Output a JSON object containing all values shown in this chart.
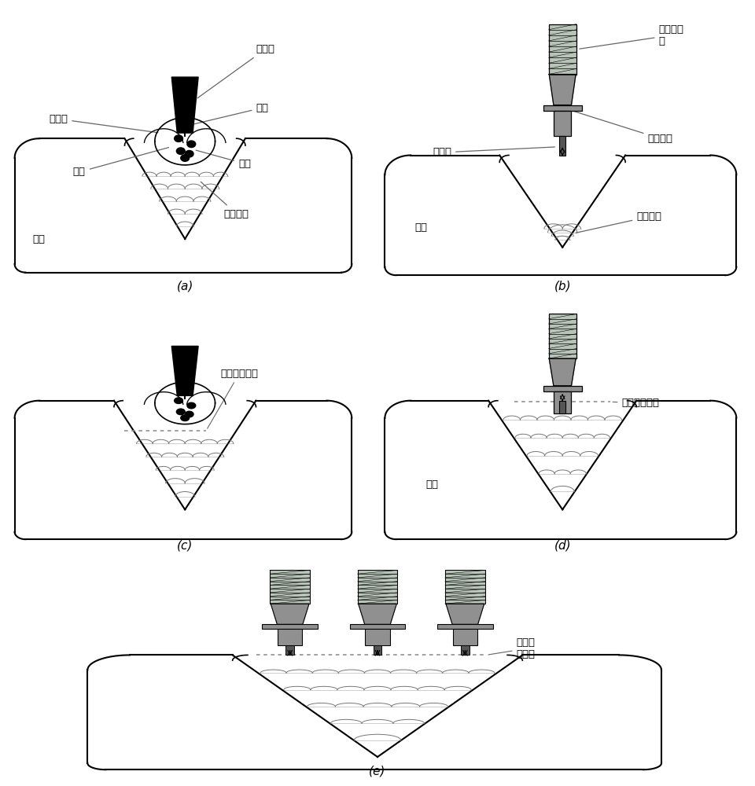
{
  "bg_color": "#ffffff",
  "tool_fill": "#909090",
  "tool_edge": "#000000",
  "thread_fill": "#b0b8b0",
  "weld_color": "#888888",
  "sub_labels": [
    "(a)",
    "(b)",
    "(c)",
    "(d)",
    "(e)"
  ],
  "font_name": "SimHei"
}
